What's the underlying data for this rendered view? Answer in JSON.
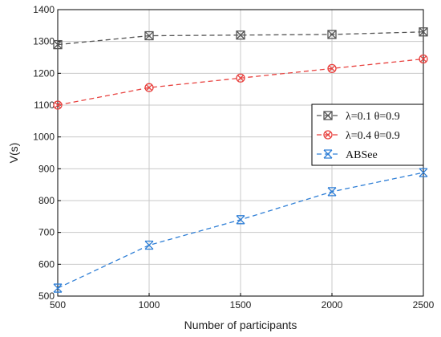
{
  "chart_data": {
    "type": "line",
    "xlabel": "Number of participants",
    "ylabel": "V(s)",
    "x": [
      500,
      1000,
      1500,
      2000,
      2500
    ],
    "xlim": [
      500,
      2500
    ],
    "ylim": [
      500,
      1400
    ],
    "xticks": [
      "500",
      "1000",
      "1500",
      "2000",
      "2500"
    ],
    "yticks": [
      "500",
      "600",
      "700",
      "800",
      "900",
      "1000",
      "1100",
      "1200",
      "1300",
      "1400"
    ],
    "grid": true,
    "legend_position": "right",
    "series": [
      {
        "name": "λ=0.1  θ=0.9",
        "values": [
          1290,
          1318,
          1320,
          1322,
          1330
        ],
        "color": "#555555",
        "marker": "boxed-x"
      },
      {
        "name": "λ=0.4  θ=0.9",
        "values": [
          1100,
          1155,
          1185,
          1215,
          1245
        ],
        "color": "#e8423f",
        "marker": "circled-x"
      },
      {
        "name": "ABSee",
        "values": [
          525,
          660,
          740,
          828,
          888
        ],
        "color": "#2f7fd6",
        "marker": "bowtie"
      }
    ]
  }
}
